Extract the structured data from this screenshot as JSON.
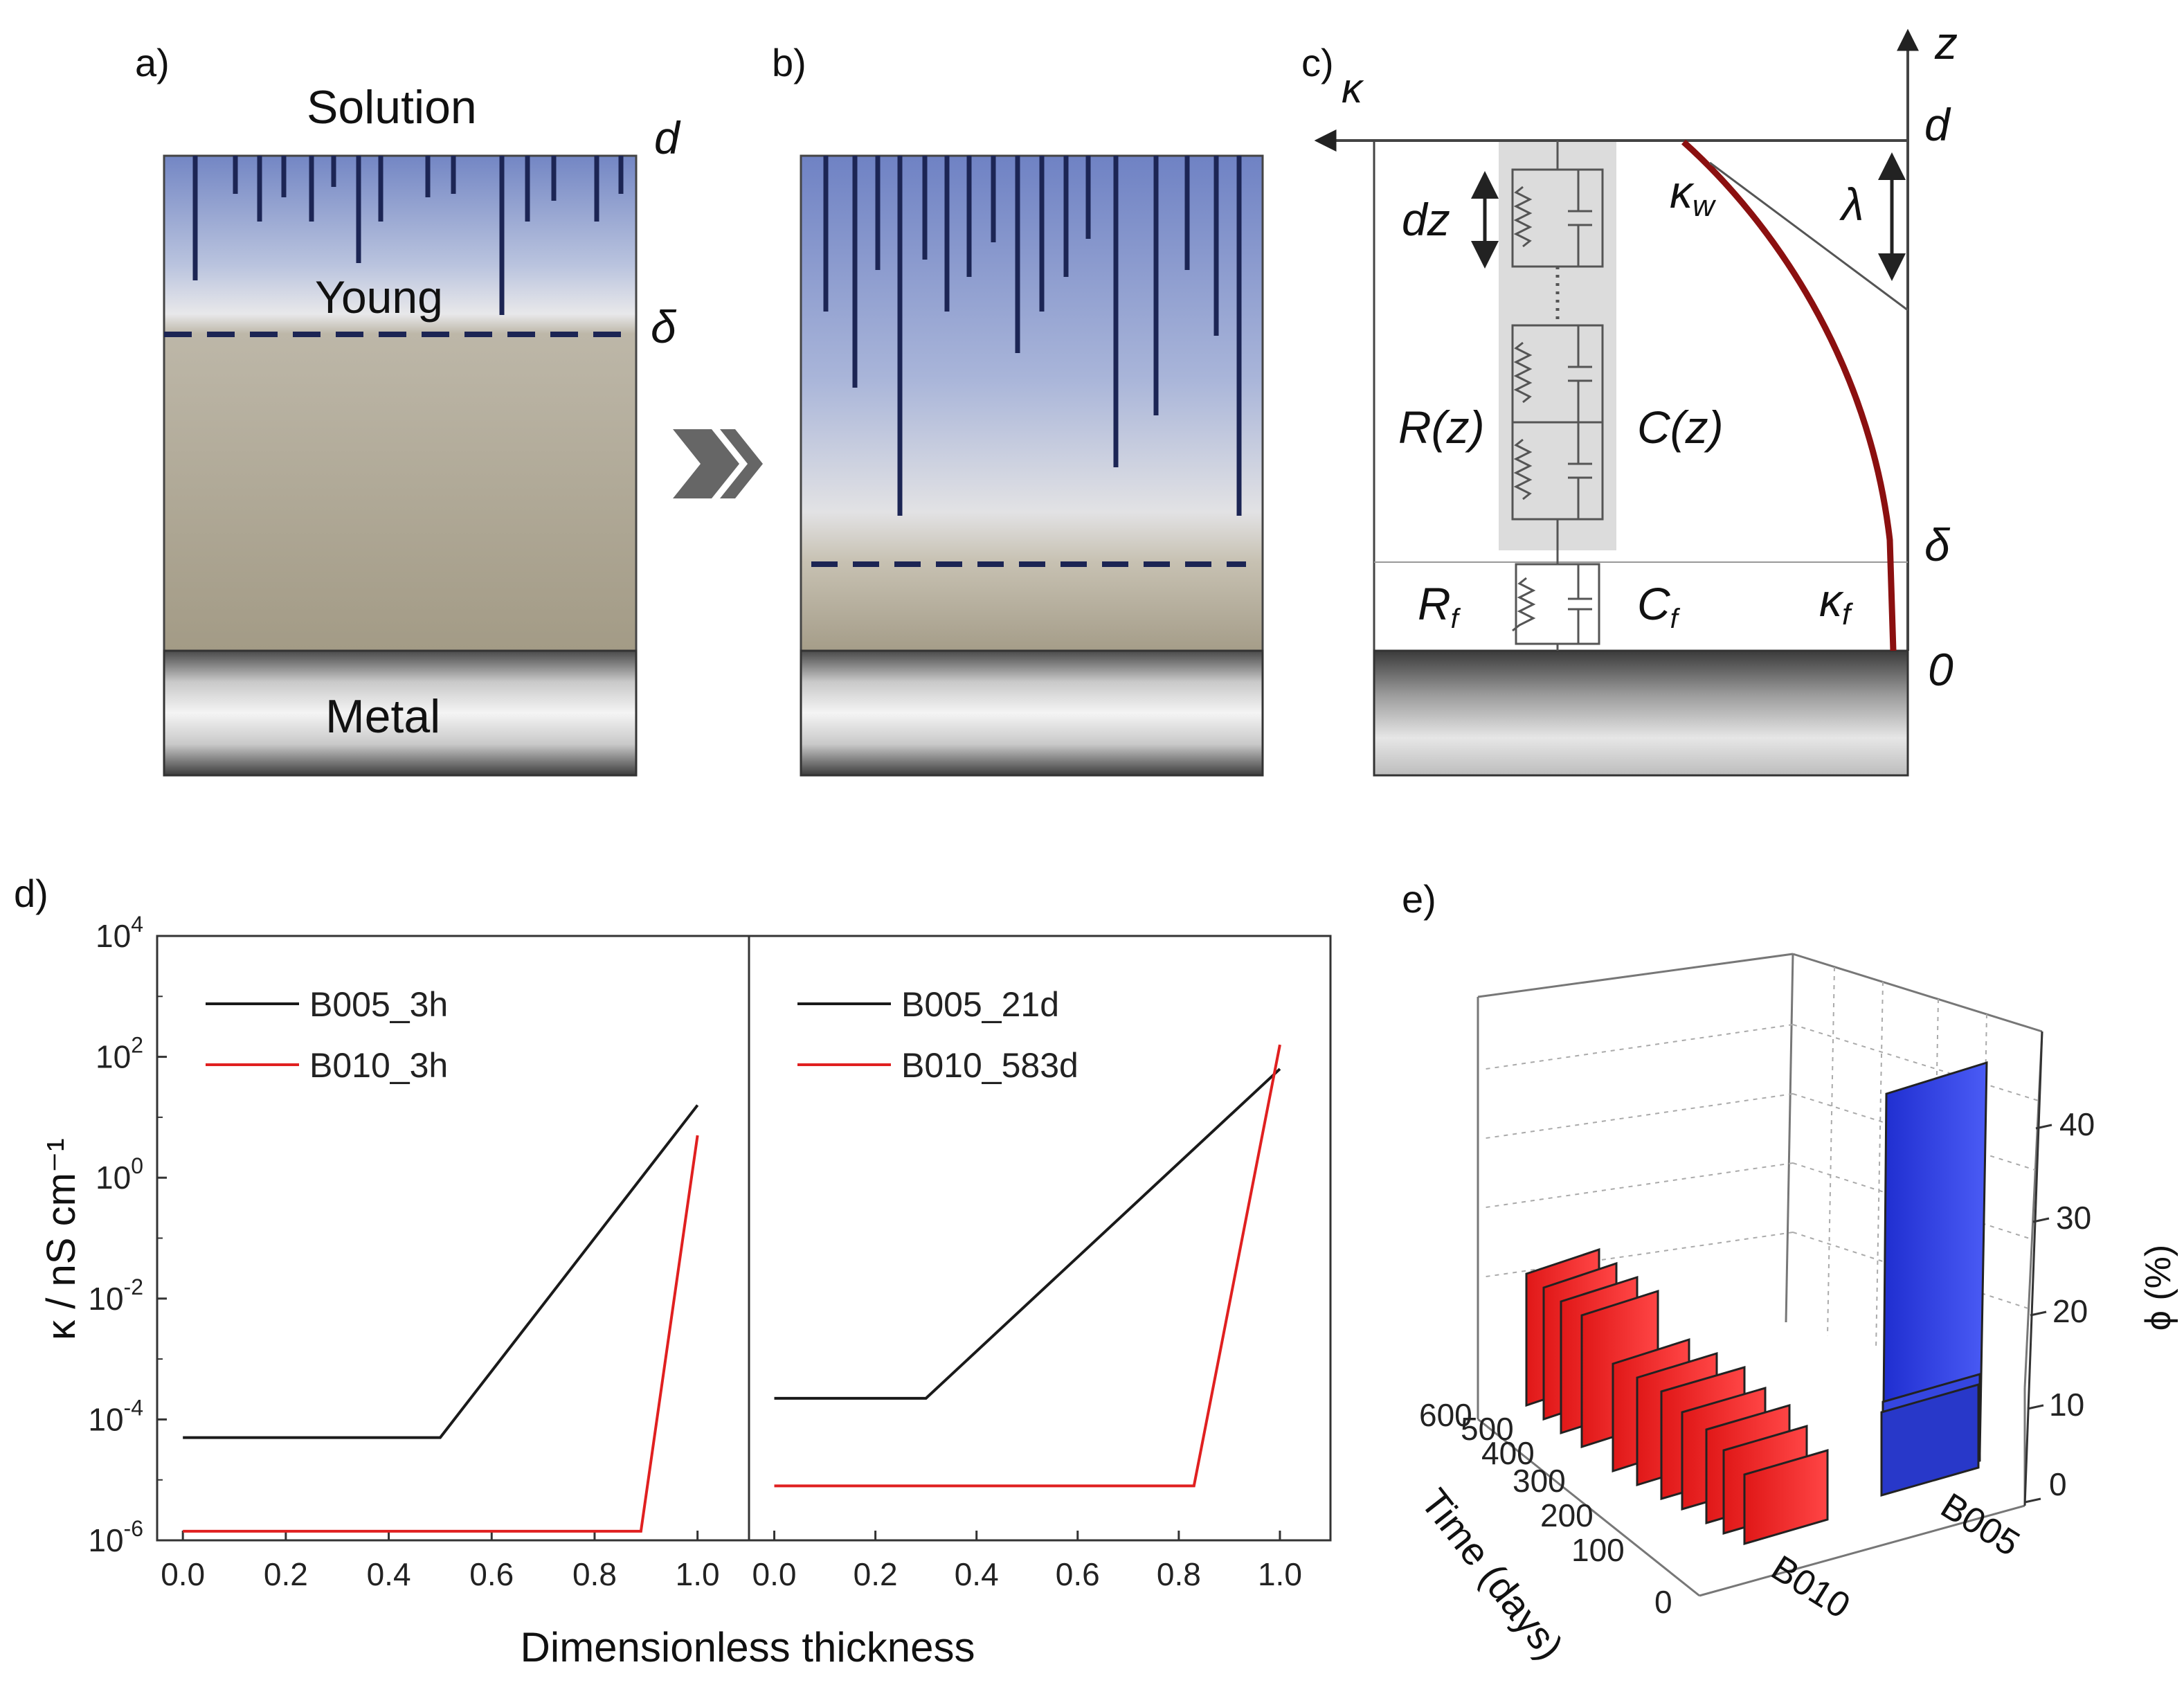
{
  "figure": {
    "panel_labels": {
      "a": "a)",
      "b": "b)",
      "c": "c)",
      "d": "d)",
      "e": "e)"
    },
    "panel_a": {
      "solution": "Solution",
      "young": "Young",
      "metal": "Metal",
      "d": "d",
      "delta": "δ"
    },
    "panel_c": {
      "z_axis": "z",
      "kappa_axis": "κ",
      "d": "d",
      "delta": "δ",
      "zero": "0",
      "dz": "dz",
      "Rz": "R(z)",
      "Cz": "C(z)",
      "R_f": "R",
      "R_f_sub": "f",
      "C_f": "C",
      "C_f_sub": "f",
      "kappa_w": "κ",
      "kappa_w_sub": "w",
      "kappa_f": "κ",
      "kappa_f_sub": "f",
      "lambda": "λ"
    },
    "panel_e": {
      "ylabel": "Time (days)",
      "zlabel": "ϕ (%)",
      "x_categories": [
        "B010",
        "B005"
      ],
      "time_ticks": [
        "0",
        "100",
        "200",
        "300",
        "400",
        "500",
        "600"
      ],
      "phi_ticks": [
        "0",
        "10",
        "20",
        "30",
        "40"
      ]
    },
    "colors": {
      "black_series": "#1a1a1a",
      "red_series": "#e02020",
      "blue_bar": "#2f3fe6",
      "red_bar": "#f02a2a",
      "coating_top": "#7a8fc9",
      "coating_bottom": "#a79f8c",
      "curve": "#8b1010"
    }
  },
  "chart_data": [
    {
      "type": "line",
      "panel": "d-left",
      "ylabel": "κ / nS cm⁻¹",
      "xlabel": "Dimensionless thickness",
      "ylim_log10": [
        -6,
        4
      ],
      "xlim": [
        -0.05,
        1.1
      ],
      "x_ticks": [
        "0.0",
        "0.2",
        "0.4",
        "0.6",
        "0.8",
        "1.0"
      ],
      "y_ticks": [
        {
          "base": "10",
          "exp": "-6"
        },
        {
          "base": "10",
          "exp": "-4"
        },
        {
          "base": "10",
          "exp": "-2"
        },
        {
          "base": "10",
          "exp": "0"
        },
        {
          "base": "10",
          "exp": "2"
        },
        {
          "base": "10",
          "exp": "4"
        }
      ],
      "series": [
        {
          "name": "B005_3h",
          "color": "#1a1a1a",
          "x": [
            0.0,
            0.5,
            1.0
          ],
          "log10_y": [
            -4.3,
            -4.3,
            1.2
          ]
        },
        {
          "name": "B010_3h",
          "color": "#e02020",
          "x": [
            0.0,
            0.89,
            1.0
          ],
          "log10_y": [
            -5.85,
            -5.85,
            0.7
          ]
        }
      ]
    },
    {
      "type": "line",
      "panel": "d-right",
      "xlabel": "Dimensionless thickness",
      "ylim_log10": [
        -6,
        4
      ],
      "xlim": [
        -0.05,
        1.1
      ],
      "x_ticks": [
        "0.0",
        "0.2",
        "0.4",
        "0.6",
        "0.8",
        "1.0"
      ],
      "series": [
        {
          "name": "B005_21d",
          "color": "#1a1a1a",
          "x": [
            0.0,
            0.3,
            1.0
          ],
          "log10_y": [
            -3.65,
            -3.65,
            1.8
          ]
        },
        {
          "name": "B010_583d",
          "color": "#e02020",
          "x": [
            0.0,
            0.83,
            1.0
          ],
          "log10_y": [
            -5.1,
            -5.1,
            2.2
          ]
        }
      ]
    }
  ]
}
